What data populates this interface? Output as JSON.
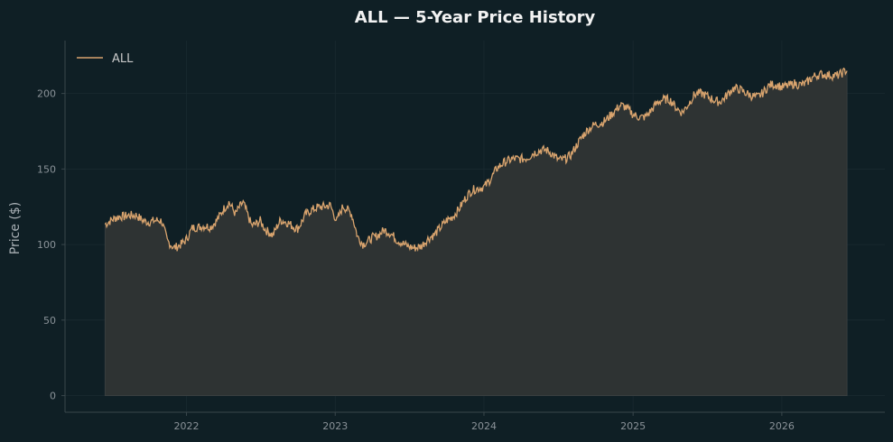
{
  "chart_data": {
    "type": "area",
    "title": "ALL — 5-Year Price History",
    "xlabel": "",
    "ylabel": "Price ($)",
    "x_range": [
      "2021-06-10",
      "2026-06-12"
    ],
    "ylim": [
      -11,
      235
    ],
    "y_ticks": [
      0,
      50,
      100,
      150,
      200
    ],
    "x_ticks": [
      "2022",
      "2023",
      "2024",
      "2025",
      "2026"
    ],
    "legend": {
      "position": "top-left",
      "entries": [
        "ALL"
      ]
    },
    "grid": true,
    "colors": {
      "line": "#d9a46e",
      "fill": "#2e3333",
      "background": "#0f1f25",
      "grid": "#1a2a30",
      "axis": "#3a474c"
    },
    "series": [
      {
        "name": "ALL",
        "points": [
          [
            "2021-06-15",
            116
          ],
          [
            "2021-07-01",
            117
          ],
          [
            "2021-08-01",
            116
          ],
          [
            "2021-09-01",
            121
          ],
          [
            "2021-10-01",
            116
          ],
          [
            "2021-11-01",
            113
          ],
          [
            "2021-11-15",
            101
          ],
          [
            "2021-12-01",
            99
          ],
          [
            "2021-12-15",
            102
          ],
          [
            "2022-01-01",
            105
          ],
          [
            "2022-01-15",
            110
          ],
          [
            "2022-02-01",
            109
          ],
          [
            "2022-03-01",
            112
          ],
          [
            "2022-04-01",
            125
          ],
          [
            "2022-04-15",
            128
          ],
          [
            "2022-05-01",
            118
          ],
          [
            "2022-05-20",
            126
          ],
          [
            "2022-06-10",
            114
          ],
          [
            "2022-07-01",
            118
          ],
          [
            "2022-07-15",
            110
          ],
          [
            "2022-08-01",
            104
          ],
          [
            "2022-08-20",
            114
          ],
          [
            "2022-09-10",
            115
          ],
          [
            "2022-10-01",
            113
          ],
          [
            "2022-10-20",
            120
          ],
          [
            "2022-11-10",
            121
          ],
          [
            "2022-12-01",
            124
          ],
          [
            "2022-12-20",
            128
          ],
          [
            "2023-01-05",
            118
          ],
          [
            "2023-01-20",
            126
          ],
          [
            "2023-02-10",
            118
          ],
          [
            "2023-02-25",
            103
          ],
          [
            "2023-03-10",
            100
          ],
          [
            "2023-04-01",
            107
          ],
          [
            "2023-05-01",
            109
          ],
          [
            "2023-06-01",
            101
          ],
          [
            "2023-07-01",
            101
          ],
          [
            "2023-08-01",
            99
          ],
          [
            "2023-09-01",
            104
          ],
          [
            "2023-10-01",
            118
          ],
          [
            "2023-11-01",
            124
          ],
          [
            "2023-12-01",
            133
          ],
          [
            "2024-01-01",
            140
          ],
          [
            "2024-02-01",
            151
          ],
          [
            "2024-03-01",
            153
          ],
          [
            "2024-04-01",
            158
          ],
          [
            "2024-05-01",
            162
          ],
          [
            "2024-06-01",
            160
          ],
          [
            "2024-07-01",
            157
          ],
          [
            "2024-08-01",
            161
          ],
          [
            "2024-09-01",
            170
          ],
          [
            "2024-10-01",
            180
          ],
          [
            "2024-11-01",
            186
          ],
          [
            "2024-12-01",
            190
          ],
          [
            "2025-01-01",
            186
          ],
          [
            "2025-02-01",
            187
          ],
          [
            "2025-03-01",
            192
          ],
          [
            "2025-04-01",
            195
          ],
          [
            "2025-05-01",
            190
          ],
          [
            "2025-06-01",
            198
          ],
          [
            "2025-07-01",
            197
          ],
          [
            "2025-08-01",
            197
          ],
          [
            "2025-09-01",
            202
          ],
          [
            "2025-10-01",
            199
          ],
          [
            "2025-11-01",
            200
          ],
          [
            "2025-12-01",
            205
          ],
          [
            "2026-01-01",
            202
          ],
          [
            "2026-02-01",
            209
          ],
          [
            "2026-03-01",
            207
          ],
          [
            "2026-04-01",
            210
          ],
          [
            "2026-05-01",
            214
          ],
          [
            "2026-06-10",
            215
          ]
        ]
      }
    ]
  }
}
